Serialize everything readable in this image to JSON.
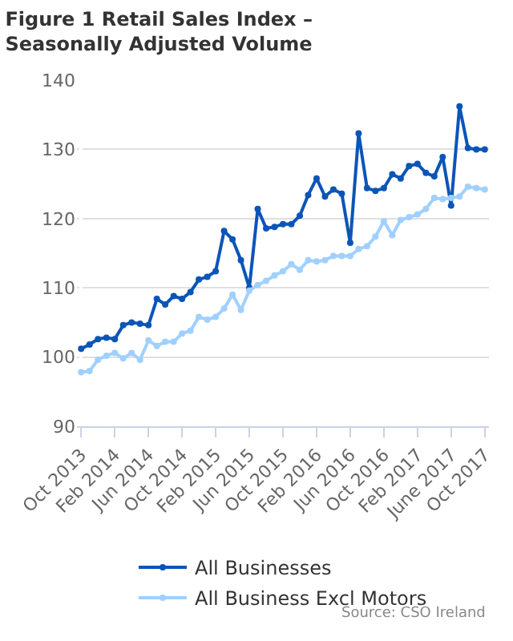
{
  "chart_data": {
    "type": "line",
    "title": "Figure 1 Retail Sales Index – Seasonally Adjusted Volume",
    "categories": [
      "Oct 2013",
      null,
      null,
      null,
      "Feb 2014",
      null,
      null,
      null,
      "Jun 2014",
      null,
      null,
      null,
      "Oct 2014",
      null,
      null,
      null,
      "Feb 2015",
      null,
      null,
      null,
      "Jun 2015",
      null,
      null,
      null,
      "Oct 2015",
      null,
      null,
      null,
      "Feb 2016",
      null,
      null,
      null,
      "Jun 2016",
      null,
      null,
      null,
      "Oct 2016",
      null,
      null,
      null,
      "Feb 2017",
      null,
      null,
      null,
      "June 2017",
      null,
      null,
      null,
      "Oct 2017"
    ],
    "series": [
      {
        "name": "All Businesses",
        "color": "#0b55b8",
        "values": [
          101.2,
          101.8,
          102.6,
          102.8,
          102.6,
          104.6,
          105.0,
          104.8,
          104.6,
          108.4,
          107.6,
          108.8,
          108.4,
          109.4,
          111.2,
          111.6,
          112.4,
          118.2,
          117.0,
          114.0,
          110.0,
          121.4,
          118.6,
          118.8,
          119.2,
          119.2,
          120.4,
          123.4,
          125.8,
          123.2,
          124.2,
          123.6,
          116.5,
          132.3,
          124.4,
          124.0,
          124.4,
          126.4,
          125.8,
          127.6,
          127.9,
          126.6,
          126.1,
          128.9,
          121.9,
          136.2,
          130.2,
          130.0,
          130.0
        ]
      },
      {
        "name": "All Business Excl Motors",
        "color": "#9fd0ff",
        "values": [
          97.8,
          98.0,
          99.6,
          100.2,
          100.6,
          99.8,
          100.6,
          99.6,
          102.4,
          101.6,
          102.2,
          102.2,
          103.4,
          103.8,
          105.8,
          105.4,
          105.8,
          107.0,
          109.0,
          106.8,
          109.6,
          110.4,
          111.0,
          111.8,
          112.4,
          113.4,
          112.6,
          114.0,
          113.8,
          114.0,
          114.6,
          114.6,
          114.6,
          115.6,
          116.0,
          117.4,
          119.6,
          117.6,
          119.8,
          120.2,
          120.6,
          121.4,
          123.0,
          122.8,
          123.0,
          123.2,
          124.6,
          124.4,
          124.2
        ]
      }
    ],
    "ylim": [
      90,
      140
    ],
    "yticks": [
      90,
      100,
      110,
      120,
      130,
      140
    ],
    "grid": "y",
    "legend": "bottom",
    "marker": "circle",
    "line_style": "solid",
    "annotations": [
      "Source: CSO Ireland"
    ]
  }
}
